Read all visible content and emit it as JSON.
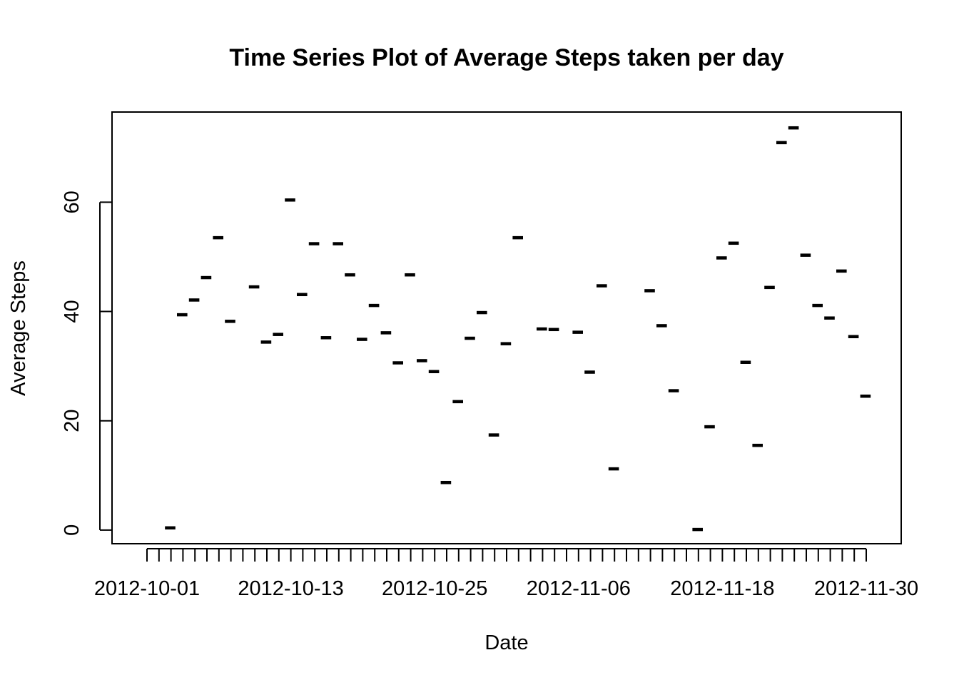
{
  "chart_data": {
    "type": "step-points",
    "title": "Time Series Plot of Average Steps taken per day",
    "xlabel": "Date",
    "ylabel": "Average Steps",
    "y_ticks": [
      0,
      20,
      40,
      60
    ],
    "ylim": [
      -2.5,
      76.5
    ],
    "x_tick_labels": [
      "2012-10-01",
      "2012-10-13",
      "2012-10-25",
      "2012-11-06",
      "2012-11-18",
      "2012-11-30"
    ],
    "dates": [
      "2012-10-01",
      "2012-10-02",
      "2012-10-03",
      "2012-10-04",
      "2012-10-05",
      "2012-10-06",
      "2012-10-07",
      "2012-10-08",
      "2012-10-09",
      "2012-10-10",
      "2012-10-11",
      "2012-10-12",
      "2012-10-13",
      "2012-10-14",
      "2012-10-15",
      "2012-10-16",
      "2012-10-17",
      "2012-10-18",
      "2012-10-19",
      "2012-10-20",
      "2012-10-21",
      "2012-10-22",
      "2012-10-23",
      "2012-10-24",
      "2012-10-25",
      "2012-10-26",
      "2012-10-27",
      "2012-10-28",
      "2012-10-29",
      "2012-10-30",
      "2012-10-31",
      "2012-11-01",
      "2012-11-02",
      "2012-11-03",
      "2012-11-04",
      "2012-11-05",
      "2012-11-06",
      "2012-11-07",
      "2012-11-08",
      "2012-11-09",
      "2012-11-10",
      "2012-11-11",
      "2012-11-12",
      "2012-11-13",
      "2012-11-14",
      "2012-11-15",
      "2012-11-16",
      "2012-11-17",
      "2012-11-18",
      "2012-11-19",
      "2012-11-20",
      "2012-11-21",
      "2012-11-22",
      "2012-11-23",
      "2012-11-24",
      "2012-11-25",
      "2012-11-26",
      "2012-11-27",
      "2012-11-28",
      "2012-11-29",
      "2012-11-30"
    ],
    "values": [
      null,
      0.4,
      39.4,
      42.1,
      46.2,
      53.5,
      38.2,
      null,
      44.5,
      34.4,
      35.8,
      60.4,
      43.1,
      52.4,
      35.2,
      52.4,
      46.7,
      34.9,
      41.1,
      36.1,
      30.6,
      46.7,
      31.0,
      29.0,
      8.7,
      23.5,
      35.1,
      39.8,
      17.4,
      34.1,
      53.5,
      null,
      36.8,
      36.7,
      null,
      36.2,
      28.9,
      44.7,
      11.2,
      null,
      null,
      43.8,
      37.4,
      25.5,
      null,
      0.1,
      18.9,
      49.8,
      52.5,
      30.7,
      15.5,
      44.4,
      70.9,
      73.6,
      50.3,
      41.1,
      38.8,
      47.4,
      35.4,
      24.5,
      null
    ]
  }
}
